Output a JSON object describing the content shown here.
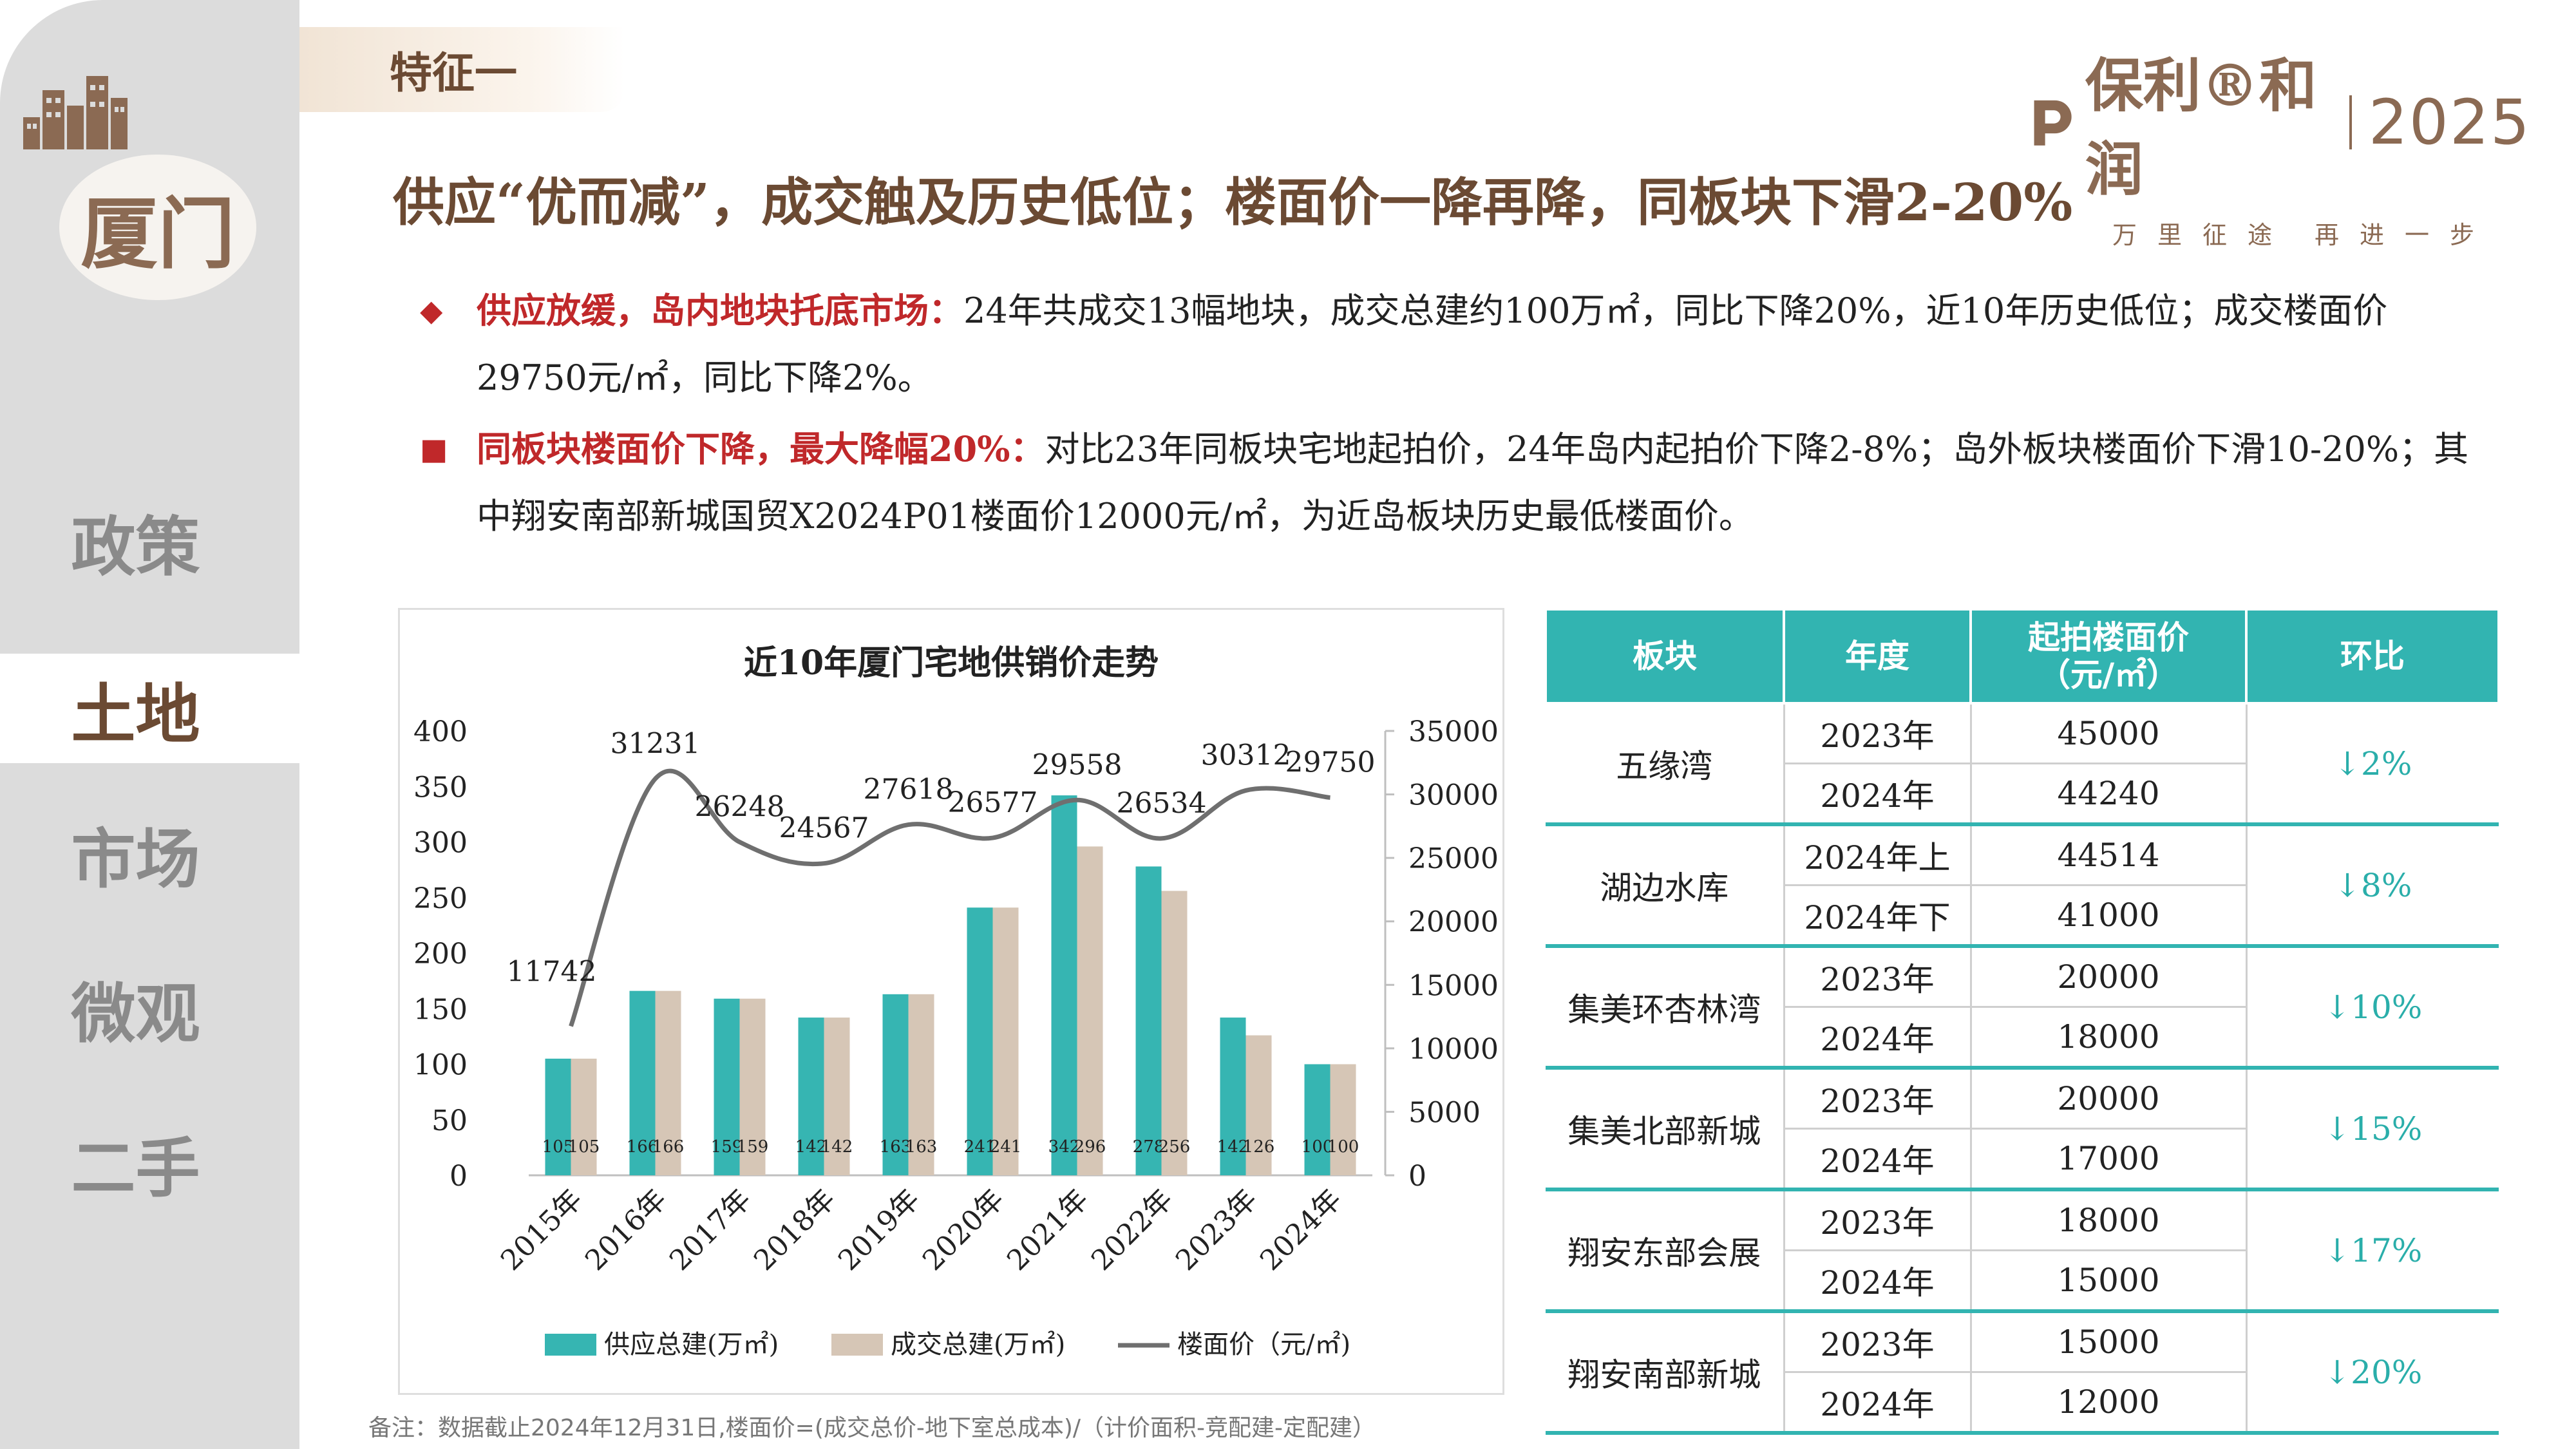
{
  "sidebar": {
    "city": "厦门",
    "items": [
      {
        "label": "政策"
      },
      {
        "label": "土地",
        "active": true
      },
      {
        "label": "市场"
      },
      {
        "label": "微观"
      },
      {
        "label": "二手"
      }
    ]
  },
  "header": {
    "tag": "特征一",
    "headline": "供应“优而减”，成交触及历史低位；楼面价一降再降，同板块下滑2-20%",
    "logo": {
      "brand": "保利®和润",
      "year": "2025",
      "slogan_left": "万里征途",
      "slogan_right": "再进一步"
    }
  },
  "bullets": [
    {
      "marker": "◆",
      "lead": "供应放缓，岛内地块托底市场：",
      "text": "24年共成交13幅地块，成交总建约100万㎡，同比下降20%，近10年历史低位；成交楼面价29750元/㎡，同比下降2%。"
    },
    {
      "marker": "■",
      "lead": "同板块楼面价下降，最大降幅20%：",
      "text": "对比23年同板块宅地起拍价，24年岛内起拍价下降2-8%；岛外板块楼面价下滑10-20%；其中翔安南部新城国贸X2024P01楼面价12000元/㎡，为近岛板块历史最低楼面价。"
    }
  ],
  "chart_data": {
    "type": "bar",
    "title": "近10年厦门宅地供销价走势",
    "categories": [
      "2015年",
      "2016年",
      "2017年",
      "2018年",
      "2019年",
      "2020年",
      "2021年",
      "2022年",
      "2023年",
      "2024年"
    ],
    "series": [
      {
        "name": "供应总建(万㎡)",
        "type": "bar",
        "axis": "left",
        "color": "#36b5b2",
        "values": [
          105,
          166,
          159,
          142,
          163,
          241,
          342,
          278,
          142,
          100
        ]
      },
      {
        "name": "成交总建(万㎡)",
        "type": "bar",
        "axis": "left",
        "color": "#d6c6b6",
        "values": [
          105,
          166,
          159,
          142,
          163,
          241,
          296,
          256,
          126,
          100
        ]
      },
      {
        "name": "楼面价（元/㎡)",
        "type": "line",
        "axis": "right",
        "color": "#6f6f6f",
        "values": [
          11742,
          31231,
          26248,
          24567,
          27618,
          26577,
          29558,
          26534,
          30312,
          29750
        ]
      }
    ],
    "y_left": {
      "min": 0,
      "max": 400,
      "ticks": [
        0,
        50,
        100,
        150,
        200,
        250,
        300,
        350,
        400
      ]
    },
    "y_right": {
      "min": 0,
      "max": 35000,
      "ticks": [
        0,
        5000,
        10000,
        15000,
        20000,
        25000,
        30000,
        35000
      ]
    },
    "legend_position": "bottom",
    "grid": false
  },
  "table": {
    "headers": [
      "板块",
      "年度",
      "起拍楼面价\n（元/㎡）",
      "环比"
    ],
    "groups": [
      {
        "block": "五缘湾",
        "ratio": "↓2%",
        "rows": [
          {
            "year": "2023年",
            "price": "45000"
          },
          {
            "year": "2024年",
            "price": "44240"
          }
        ]
      },
      {
        "block": "湖边水库",
        "ratio": "↓8%",
        "rows": [
          {
            "year": "2024年上",
            "price": "44514"
          },
          {
            "year": "2024年下",
            "price": "41000"
          }
        ]
      },
      {
        "block": "集美环杏林湾",
        "ratio": "↓10%",
        "rows": [
          {
            "year": "2023年",
            "price": "20000"
          },
          {
            "year": "2024年",
            "price": "18000"
          }
        ]
      },
      {
        "block": "集美北部新城",
        "ratio": "↓15%",
        "rows": [
          {
            "year": "2023年",
            "price": "20000"
          },
          {
            "year": "2024年",
            "price": "17000"
          }
        ]
      },
      {
        "block": "翔安东部会展",
        "ratio": "↓17%",
        "rows": [
          {
            "year": "2023年",
            "price": "18000"
          },
          {
            "year": "2024年",
            "price": "15000"
          }
        ]
      },
      {
        "block": "翔安南部新城",
        "ratio": "↓20%",
        "rows": [
          {
            "year": "2023年",
            "price": "15000"
          },
          {
            "year": "2024年",
            "price": "12000"
          }
        ]
      }
    ]
  },
  "footnote": "备注：数据截止2024年12月31日,楼面价=(成交总价-地下室总成本)/（计价面积-竞配建-定配建）",
  "colors": {
    "accent_brown": "#6b4a33",
    "accent_red": "#c0282a",
    "teal": "#32b4b1",
    "beige": "#d6c6b6"
  }
}
